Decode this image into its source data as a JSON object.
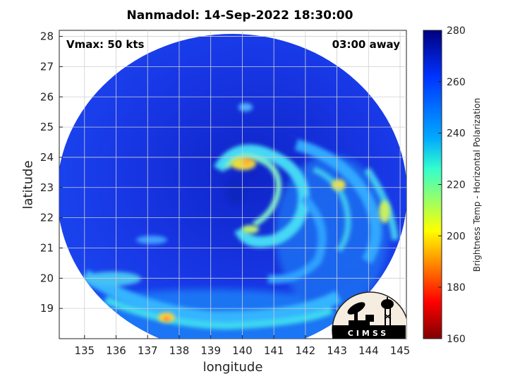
{
  "title": "Nanmadol: 14-Sep-2022 18:30:00",
  "annotations": {
    "vmax": "Vmax: 50 kts",
    "time_away": "03:00 away"
  },
  "map": {
    "xlabel": "longitude",
    "ylabel": "latitude",
    "x_ticks": [
      "135",
      "136",
      "137",
      "138",
      "139",
      "140",
      "141",
      "142",
      "143",
      "144",
      "145"
    ],
    "y_ticks": [
      "19",
      "20",
      "21",
      "22",
      "23",
      "24",
      "25",
      "26",
      "27",
      "28"
    ],
    "xlim": [
      134.2,
      145.2
    ],
    "ylim": [
      18.0,
      28.2
    ],
    "grid": true
  },
  "colorbar": {
    "label": "Brightness Temp - Horizontal Polarization",
    "ticks": [
      "160",
      "180",
      "200",
      "220",
      "240",
      "260",
      "280"
    ],
    "range": [
      160,
      280
    ],
    "colormap": "jet"
  },
  "logo": {
    "text": "CIMSS"
  },
  "colors": {
    "background_field": "#1530e6",
    "dark_field": "#0a1fb8",
    "bands_light": "#38b8ff",
    "bands_cyan": "#3cf0e0",
    "bands_yellow": "#e8e040",
    "hot_spot": "#ff7a20"
  }
}
